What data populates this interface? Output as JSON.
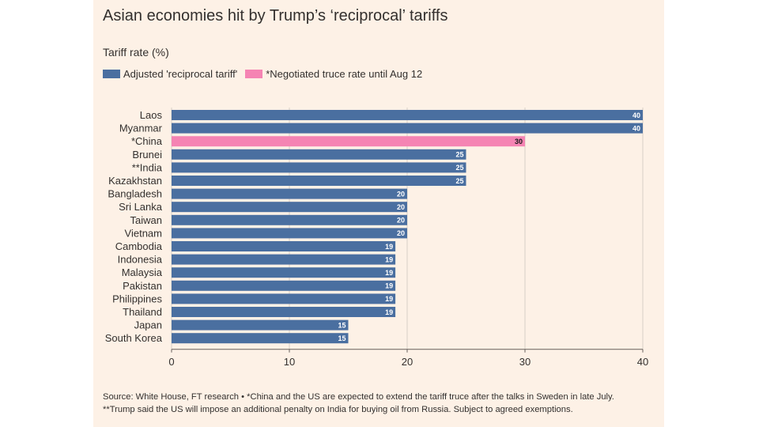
{
  "chart_data": {
    "type": "bar",
    "orientation": "horizontal",
    "title": "Asian economies hit by Trump’s ‘reciprocal’ tariffs",
    "subtitle": "Tariff rate (%)",
    "categories": [
      "Laos",
      "Myanmar",
      "*China",
      "Brunei",
      "**India",
      "Kazakhstan",
      "Bangladesh",
      "Sri Lanka",
      "Taiwan",
      "Vietnam",
      "Cambodia",
      "Indonesia",
      "Malaysia",
      "Pakistan",
      "Philippines",
      "Thailand",
      "Japan",
      "South Korea"
    ],
    "values": [
      40,
      40,
      30,
      25,
      25,
      25,
      20,
      20,
      20,
      20,
      19,
      19,
      19,
      19,
      19,
      19,
      15,
      15
    ],
    "bar_series": [
      "Adjusted 'reciprocal tariff'",
      "Adjusted 'reciprocal tariff'",
      "*Negotiated truce rate until Aug 12",
      "Adjusted 'reciprocal tariff'",
      "Adjusted 'reciprocal tariff'",
      "Adjusted 'reciprocal tariff'",
      "Adjusted 'reciprocal tariff'",
      "Adjusted 'reciprocal tariff'",
      "Adjusted 'reciprocal tariff'",
      "Adjusted 'reciprocal tariff'",
      "Adjusted 'reciprocal tariff'",
      "Adjusted 'reciprocal tariff'",
      "Adjusted 'reciprocal tariff'",
      "Adjusted 'reciprocal tariff'",
      "Adjusted 'reciprocal tariff'",
      "Adjusted 'reciprocal tariff'",
      "Adjusted 'reciprocal tariff'",
      "Adjusted 'reciprocal tariff'"
    ],
    "series": [
      {
        "name": "Adjusted 'reciprocal tariff'",
        "color": "#4a6fa0"
      },
      {
        "name": "*Negotiated truce rate until Aug 12",
        "color": "#f584b3"
      }
    ],
    "xlim": [
      0,
      40
    ],
    "xticks": [
      0,
      10,
      20,
      30,
      40
    ],
    "grid": true,
    "legend_position": "top-left",
    "data_labels": true
  },
  "colors": {
    "background": "#fdf1e6",
    "primary_bar": "#4a6fa0",
    "highlight_bar": "#f584b3",
    "gridline": "#d8cfc6",
    "text": "#33302e"
  },
  "source": {
    "line1": "Source: White House, FT research • *China and the US are expected to extend the tariff truce after the talks in Sweden in late July.",
    "line2": "**Trump said the US will impose an additional penalty on India for buying oil from Russia. Subject to agreed exemptions."
  }
}
